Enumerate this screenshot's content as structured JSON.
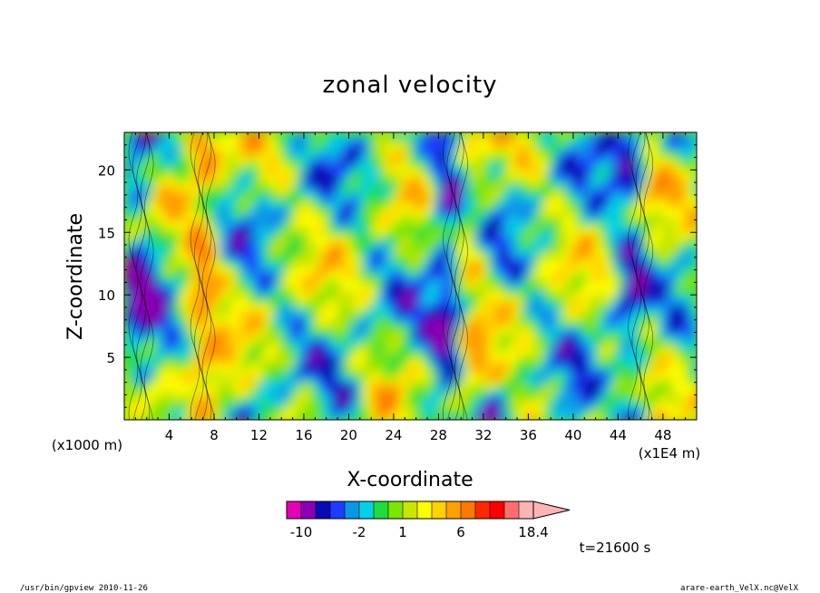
{
  "chart_data": {
    "type": "heatmap",
    "title": "zonal velocity",
    "xlabel": "X-coordinate",
    "ylabel": "Z-coordinate",
    "x_unit": "(x1E4 m)",
    "y_unit": "(x1000 m)",
    "xlim": [
      0,
      51
    ],
    "ylim": [
      0,
      23
    ],
    "x_ticks": [
      4,
      8,
      12,
      16,
      20,
      24,
      28,
      32,
      36,
      40,
      44,
      48
    ],
    "y_ticks": [
      5,
      10,
      15,
      20
    ],
    "colorbar": {
      "levels": [
        -14,
        -10,
        -6,
        -4,
        -3,
        -2,
        -1,
        0,
        1,
        2,
        3,
        4,
        6,
        8,
        10,
        12,
        14,
        18.4
      ],
      "colors": [
        "#e400b4",
        "#8a00b4",
        "#0a0ab4",
        "#1e3cff",
        "#0a96e6",
        "#00d2e6",
        "#1edc3c",
        "#7be600",
        "#c8e600",
        "#ffff00",
        "#ffd200",
        "#ffa000",
        "#ff7800",
        "#ff2800",
        "#ff0000",
        "#ff6e6e",
        "#ffb4b4"
      ],
      "tick_labels": [
        "-10",
        "-2",
        "1",
        "6",
        "18.4"
      ],
      "tick_values": [
        -10,
        -2,
        1,
        6,
        18.4
      ]
    },
    "time_label": "t=21600 s"
  },
  "footer": {
    "left": "/usr/bin/gpview  2010-11-26",
    "right": "arare-earth_VelX.nc@VelX"
  }
}
